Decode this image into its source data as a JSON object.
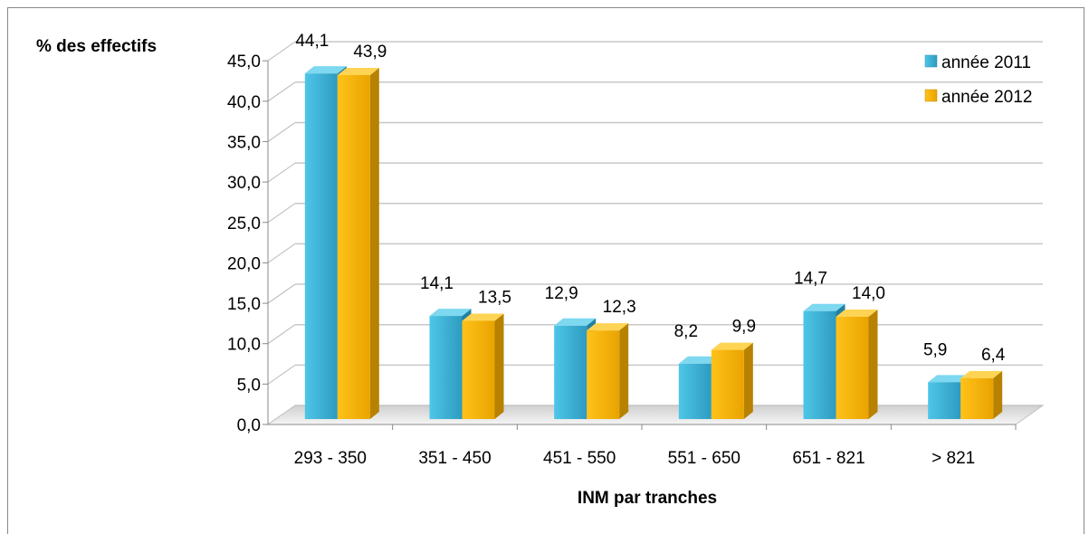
{
  "chart_data": {
    "type": "bar",
    "ylabel": "% des effectifs",
    "xlabel": "INM par tranches",
    "categories": [
      "293 - 350",
      "351 - 450",
      "451 - 550",
      "551 - 650",
      "651 - 821",
      "> 821"
    ],
    "series": [
      {
        "name": "année 2011",
        "values": [
          44.1,
          14.1,
          12.9,
          8.2,
          14.7,
          5.9
        ],
        "labels": [
          "44,1",
          "14,1",
          "12,9",
          "8,2",
          "14,7",
          "5,9"
        ],
        "color": "#3BB3D6"
      },
      {
        "name": "année 2012",
        "values": [
          43.9,
          13.5,
          12.3,
          9.9,
          14.0,
          6.4
        ],
        "labels": [
          "43,9",
          "13,5",
          "12,3",
          "9,9",
          "14,0",
          "6,4"
        ],
        "color": "#F5B400"
      }
    ],
    "yticks": [
      "0,0",
      "5,0",
      "10,0",
      "15,0",
      "20,0",
      "25,0",
      "30,0",
      "35,0",
      "40,0",
      "45,0"
    ],
    "ylim": [
      0,
      45
    ],
    "grid": true,
    "legend": "top-right",
    "style": "3d-columns"
  }
}
